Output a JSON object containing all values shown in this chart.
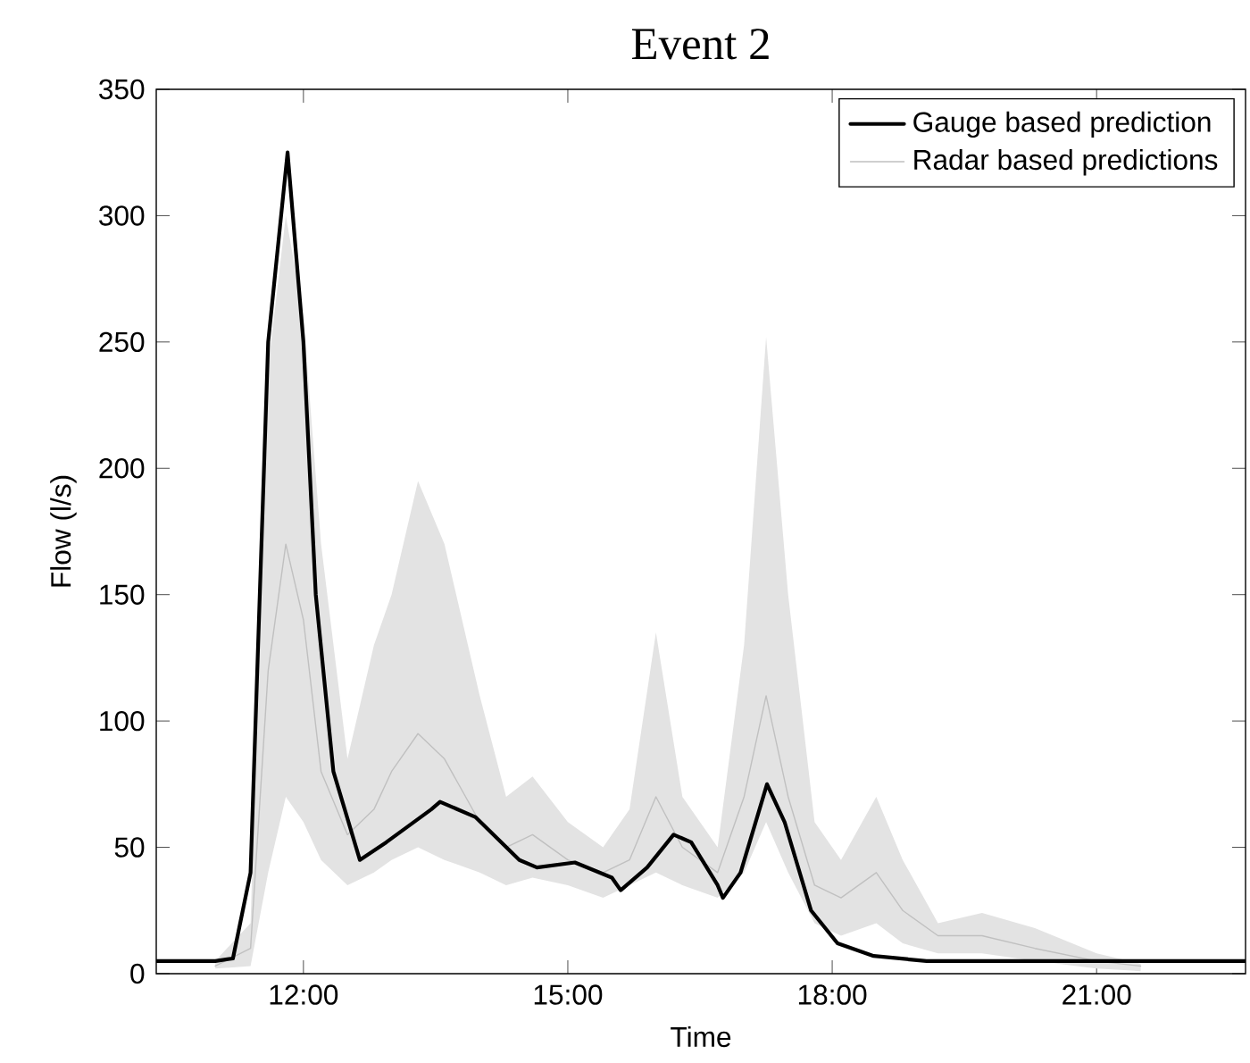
{
  "chart_data": {
    "type": "line",
    "title": "Event 2",
    "xlabel": "Time",
    "ylabel": "Flow (l/s)",
    "xlim": [
      10.33,
      22.69
    ],
    "ylim": [
      0,
      350
    ],
    "xticks": [
      {
        "value": 12,
        "label": "12:00"
      },
      {
        "value": 15,
        "label": "15:00"
      },
      {
        "value": 18,
        "label": "18:00"
      },
      {
        "value": 21,
        "label": "21:00"
      }
    ],
    "yticks": [
      0,
      50,
      100,
      150,
      200,
      250,
      300,
      350
    ],
    "legend": "top right",
    "grid": false,
    "series": [
      {
        "name": "Gauge based prediction",
        "color": "#000000",
        "x": [
          10.33,
          11.0,
          11.2,
          11.4,
          11.6,
          11.82,
          12.0,
          12.14,
          12.34,
          12.64,
          12.94,
          13.45,
          13.55,
          13.95,
          14.45,
          14.65,
          15.08,
          15.5,
          15.6,
          15.9,
          16.2,
          16.4,
          16.7,
          16.76,
          16.96,
          17.26,
          17.46,
          17.76,
          18.06,
          18.47,
          19.07,
          22.69
        ],
        "values": [
          5,
          5,
          6,
          40,
          250,
          325,
          250,
          150,
          80,
          45,
          52,
          65,
          68,
          62,
          45,
          42,
          44,
          38,
          33,
          42,
          55,
          52,
          35,
          30,
          40,
          75,
          60,
          25,
          12,
          7,
          5,
          5
        ]
      },
      {
        "name": "Radar based predictions",
        "color": "#c0c0c0",
        "x": [
          11.0,
          11.4,
          11.6,
          11.8,
          12.0,
          12.2,
          12.5,
          12.8,
          13.0,
          13.3,
          13.6,
          14.0,
          14.3,
          14.6,
          15.0,
          15.4,
          15.7,
          16.0,
          16.3,
          16.7,
          17.0,
          17.25,
          17.5,
          17.8,
          18.1,
          18.5,
          18.8,
          19.2,
          19.7,
          20.3,
          21.0,
          21.5
        ],
        "values": [
          3,
          10,
          120,
          170,
          140,
          80,
          55,
          65,
          80,
          95,
          85,
          60,
          50,
          55,
          45,
          40,
          45,
          70,
          50,
          40,
          70,
          110,
          70,
          35,
          30,
          40,
          25,
          15,
          15,
          10,
          5,
          3
        ],
        "lower": [
          2,
          3,
          40,
          70,
          60,
          45,
          35,
          40,
          45,
          50,
          45,
          40,
          35,
          38,
          35,
          30,
          35,
          40,
          35,
          30,
          40,
          60,
          40,
          20,
          15,
          20,
          12,
          8,
          8,
          5,
          2,
          1
        ],
        "upper": [
          5,
          20,
          240,
          300,
          260,
          170,
          85,
          130,
          150,
          195,
          170,
          110,
          70,
          78,
          60,
          50,
          65,
          135,
          70,
          50,
          130,
          252,
          150,
          60,
          45,
          70,
          45,
          20,
          24,
          18,
          8,
          4
        ]
      }
    ]
  }
}
